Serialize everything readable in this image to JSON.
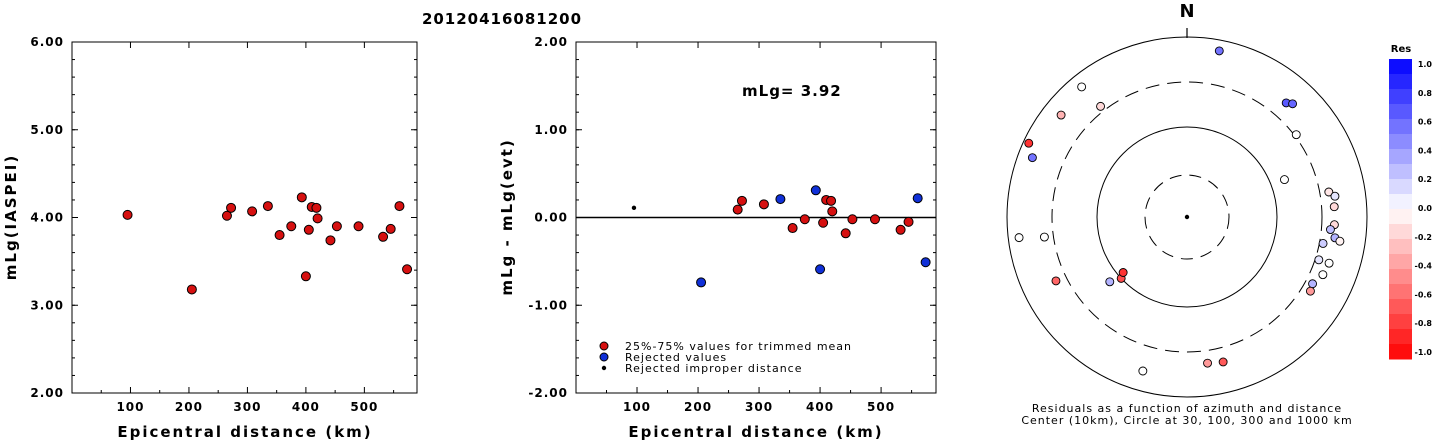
{
  "title": "20120416081200",
  "chart_data": [
    {
      "type": "scatter",
      "name": "left",
      "xlabel": "Epicentral distance (km)",
      "ylabel": "mLg(IASPEI)",
      "xlim": [
        0,
        590
      ],
      "ylim": [
        2.0,
        6.0
      ],
      "xticks": [
        "100",
        "200",
        "300",
        "400",
        "500"
      ],
      "yticks": [
        "2.00",
        "3.00",
        "4.00",
        "5.00",
        "6.00"
      ],
      "points": [
        {
          "x": 95,
          "y": 4.03
        },
        {
          "x": 205,
          "y": 3.18
        },
        {
          "x": 265,
          "y": 4.02
        },
        {
          "x": 272,
          "y": 4.11
        },
        {
          "x": 308,
          "y": 4.07
        },
        {
          "x": 335,
          "y": 4.13
        },
        {
          "x": 355,
          "y": 3.8
        },
        {
          "x": 375,
          "y": 3.9
        },
        {
          "x": 393,
          "y": 4.23
        },
        {
          "x": 400,
          "y": 3.33
        },
        {
          "x": 405,
          "y": 3.86
        },
        {
          "x": 410,
          "y": 4.12
        },
        {
          "x": 418,
          "y": 4.11
        },
        {
          "x": 420,
          "y": 3.99
        },
        {
          "x": 442,
          "y": 3.74
        },
        {
          "x": 453,
          "y": 3.9
        },
        {
          "x": 490,
          "y": 3.9
        },
        {
          "x": 532,
          "y": 3.78
        },
        {
          "x": 545,
          "y": 3.87
        },
        {
          "x": 560,
          "y": 4.13
        },
        {
          "x": 573,
          "y": 3.41
        }
      ],
      "marker_color": "#d61010"
    },
    {
      "type": "scatter",
      "name": "middle",
      "xlabel": "Epicentral distance (km)",
      "ylabel": "mLg - mLg(evt)",
      "annotation": "mLg= 3.92",
      "xlim": [
        0,
        590
      ],
      "ylim": [
        -2.0,
        2.0
      ],
      "xticks": [
        "100",
        "200",
        "300",
        "400",
        "500"
      ],
      "yticks": [
        "-2.00",
        "-1.00",
        "0.00",
        "1.00",
        "2.00"
      ],
      "reference_line": 0.0,
      "trimmed": [
        {
          "x": 265,
          "y": 0.09
        },
        {
          "x": 272,
          "y": 0.19
        },
        {
          "x": 308,
          "y": 0.15
        },
        {
          "x": 355,
          "y": -0.12
        },
        {
          "x": 375,
          "y": -0.02
        },
        {
          "x": 405,
          "y": -0.06
        },
        {
          "x": 410,
          "y": 0.2
        },
        {
          "x": 418,
          "y": 0.19
        },
        {
          "x": 420,
          "y": 0.07
        },
        {
          "x": 442,
          "y": -0.18
        },
        {
          "x": 453,
          "y": -0.02
        },
        {
          "x": 490,
          "y": -0.02
        },
        {
          "x": 532,
          "y": -0.14
        },
        {
          "x": 545,
          "y": -0.05
        }
      ],
      "rejected": [
        {
          "x": 205,
          "y": -0.74
        },
        {
          "x": 335,
          "y": 0.21
        },
        {
          "x": 393,
          "y": 0.31
        },
        {
          "x": 400,
          "y": -0.59
        },
        {
          "x": 560,
          "y": 0.22
        },
        {
          "x": 573,
          "y": -0.51
        }
      ],
      "improper": [
        {
          "x": 95,
          "y": 0.11
        }
      ],
      "legend": [
        {
          "label": "25%-75% values for trimmed mean",
          "color": "#d61010"
        },
        {
          "label": "Rejected values",
          "color": "#1030d8"
        },
        {
          "label": "Rejected improper distance",
          "color": "#000000"
        }
      ]
    },
    {
      "type": "scatter",
      "name": "polar",
      "north_label": "N",
      "caption_1": "Residuals as a function of azimuth and distance",
      "caption_2": "Center (10km), Circle at 30, 100, 300 and 1000 km",
      "colorbar_title": "Res",
      "colorbar_ticks": [
        "1.0",
        "0.8",
        "0.6",
        "0.4",
        "0.2",
        "0.0",
        "-0.2",
        "-0.4",
        "-0.6",
        "-0.8",
        "-1.0"
      ],
      "stations": [
        {
          "az": 11,
          "dist": 0.94,
          "res": 0.55
        },
        {
          "az": 41,
          "dist": 0.84,
          "res": 0.65
        },
        {
          "az": 43,
          "dist": 0.86,
          "res": 0.6
        },
        {
          "az": 53,
          "dist": 0.76,
          "res": 0.0
        },
        {
          "az": 69,
          "dist": 0.58,
          "res": 0.0
        },
        {
          "az": 80,
          "dist": 0.8,
          "res": -0.1
        },
        {
          "az": 82,
          "dist": 0.83,
          "res": 0.1
        },
        {
          "az": 86,
          "dist": 0.82,
          "res": -0.15
        },
        {
          "az": 93,
          "dist": 0.82,
          "res": -0.15
        },
        {
          "az": 95,
          "dist": 0.8,
          "res": 0.25
        },
        {
          "az": 98,
          "dist": 0.83,
          "res": 0.3
        },
        {
          "az": 101,
          "dist": 0.77,
          "res": 0.2
        },
        {
          "az": 99,
          "dist": 0.86,
          "res": -0.05
        },
        {
          "az": 108,
          "dist": 0.77,
          "res": 0.1
        },
        {
          "az": 108,
          "dist": 0.83,
          "res": 0.0
        },
        {
          "az": 113,
          "dist": 0.82,
          "res": 0.0
        },
        {
          "az": 118,
          "dist": 0.79,
          "res": 0.3
        },
        {
          "az": 121,
          "dist": 0.8,
          "res": -0.4
        },
        {
          "az": 166,
          "dist": 0.83,
          "res": -0.65
        },
        {
          "az": 172,
          "dist": 0.82,
          "res": -0.4
        },
        {
          "az": 196,
          "dist": 0.89,
          "res": 0.0
        },
        {
          "az": 230,
          "dist": 0.56,
          "res": 0.3
        },
        {
          "az": 227,
          "dist": 0.5,
          "res": -0.7
        },
        {
          "az": 229,
          "dist": 0.47,
          "res": -0.8
        },
        {
          "az": 244,
          "dist": 0.81,
          "res": -0.6
        },
        {
          "az": 262,
          "dist": 0.8,
          "res": 0.0
        },
        {
          "az": 263,
          "dist": 0.94,
          "res": 0.0
        },
        {
          "az": 291,
          "dist": 0.92,
          "res": 0.55
        },
        {
          "az": 295,
          "dist": 0.97,
          "res": -0.8
        },
        {
          "az": 309,
          "dist": 0.9,
          "res": -0.3
        },
        {
          "az": 321,
          "dist": 0.93,
          "res": 0.0
        },
        {
          "az": 322,
          "dist": 0.78,
          "res": -0.15
        }
      ]
    }
  ]
}
